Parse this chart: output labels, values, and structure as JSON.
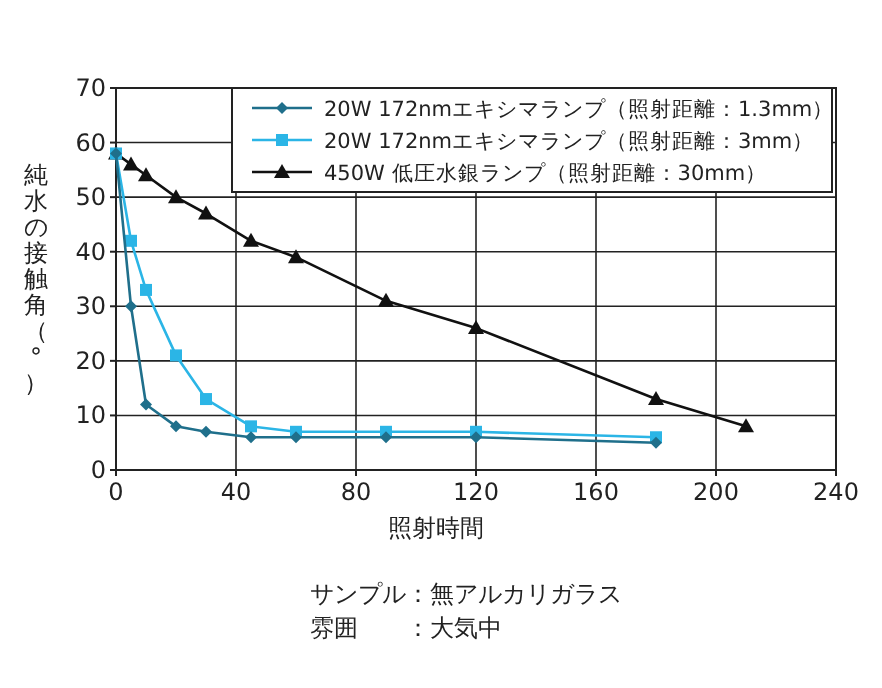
{
  "chart_data": {
    "type": "line",
    "xlabel": "照射時間",
    "ylabel": "純水の接触角（°）",
    "xlim": [
      0,
      240
    ],
    "xticks": [
      0,
      40,
      80,
      120,
      160,
      200,
      240
    ],
    "ylim": [
      0,
      70
    ],
    "yticks": [
      0,
      10,
      20,
      30,
      40,
      50,
      60,
      70
    ],
    "grid": true,
    "legend": "top right",
    "series": [
      {
        "name": "20W 172nmエキシマランプ（照射距離：1.3mm）",
        "color": "#1f6f8b",
        "marker": "diamond",
        "x": [
          0,
          5,
          10,
          20,
          30,
          45,
          60,
          90,
          120,
          180
        ],
        "values": [
          58,
          30,
          12,
          8,
          7,
          6,
          6,
          6,
          6,
          5
        ]
      },
      {
        "name": "20W 172nmエキシマランプ（照射距離：3mm）",
        "color": "#2bb5e6",
        "marker": "square",
        "x": [
          0,
          5,
          10,
          20,
          30,
          45,
          60,
          90,
          120,
          180
        ],
        "values": [
          58,
          42,
          33,
          21,
          13,
          8,
          7,
          7,
          7,
          6
        ]
      },
      {
        "name": "450W 低圧水銀ランプ（照射距離：30mm）",
        "color": "#111111",
        "marker": "triangle",
        "x": [
          0,
          5,
          10,
          20,
          30,
          45,
          60,
          90,
          120,
          180,
          210
        ],
        "values": [
          58,
          56,
          54,
          50,
          47,
          42,
          39,
          31,
          26,
          13,
          8
        ]
      }
    ],
    "annotations": [
      "サンプル：無アルカリガラス",
      "雰囲　　：大気中"
    ]
  }
}
